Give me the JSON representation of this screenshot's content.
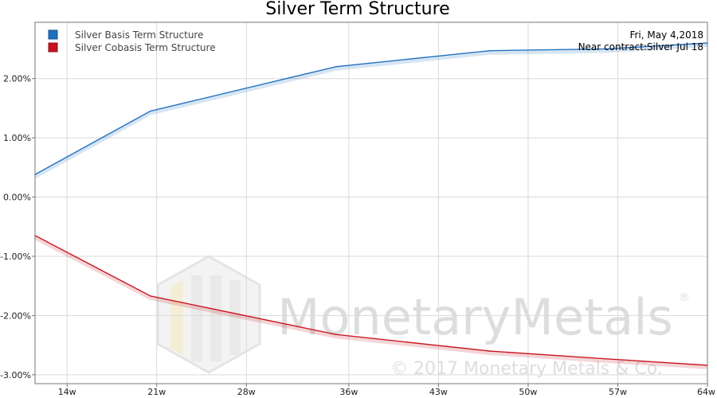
{
  "chart_data": {
    "type": "line",
    "title": "Silver Term Structure",
    "xlabel": "",
    "ylabel": "",
    "x_ticks": [
      "14w",
      "21w",
      "28w",
      "36w",
      "43w",
      "50w",
      "57w",
      "64w"
    ],
    "x_tick_values": [
      14,
      21,
      28,
      36,
      43,
      50,
      57,
      64
    ],
    "xlim": [
      11.5,
      64
    ],
    "y_ticks": [
      "-3.00%",
      "-2.00%",
      "-1.00%",
      "0.00%",
      "1.00%",
      "2.00%"
    ],
    "y_tick_values": [
      -3,
      -2,
      -1,
      0,
      1,
      2
    ],
    "ylim": [
      -3.15,
      2.95
    ],
    "grid": true,
    "legend_position": "top-left",
    "series": [
      {
        "name": "Silver Basis Term Structure",
        "color": "#1f6fbf",
        "x": [
          11.5,
          20.5,
          35,
          47,
          56,
          64
        ],
        "y": [
          0.38,
          1.45,
          2.2,
          2.47,
          2.5,
          2.6
        ]
      },
      {
        "name": "Silver Cobasis Term Structure",
        "color": "#c8141e",
        "x": [
          11.5,
          20.5,
          35,
          47,
          56,
          64
        ],
        "y": [
          -0.65,
          -1.67,
          -2.32,
          -2.6,
          -2.73,
          -2.84
        ]
      }
    ],
    "annotations": {
      "date": "Fri, May 4,2018",
      "near_contract": "Near contract:Silver Jul 18"
    },
    "watermark": {
      "brand": "MonetaryMetals",
      "registered": "®",
      "copyright": "© 2017 Monetary Metals & Co."
    }
  }
}
